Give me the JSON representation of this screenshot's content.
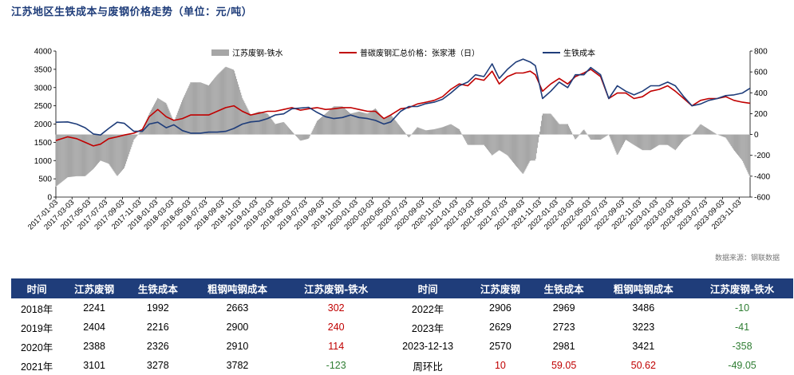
{
  "title": "江苏地区生铁成本与废钢价格走势（单位：元/吨）",
  "source": "数据来源：钢联数据",
  "chart_data": {
    "type": "bar+line",
    "legend": {
      "position": "top",
      "entries": [
        "江苏废钢-铁水",
        "普碳废钢汇总价格：张家港（日）",
        "生铁成本"
      ]
    },
    "colors": {
      "bar": "#a6a6a6",
      "scrap": "#c00000",
      "iron": "#1f3d7a"
    },
    "y_left": {
      "range": [
        0,
        4000
      ],
      "ticks": [
        "0",
        "500",
        "1000",
        "1500",
        "2000",
        "2500",
        "3000",
        "3500",
        "4000"
      ]
    },
    "y_right": {
      "range": [
        -600,
        800
      ],
      "ticks": [
        "-600",
        "-400",
        "-200",
        "0",
        "200",
        "400",
        "600",
        "800"
      ]
    },
    "x_ticks": [
      "2017-01-03",
      "2017-03-03",
      "2017-05-03",
      "2017-07-03",
      "2017-09-03",
      "2017-11-03",
      "2018-01-03",
      "2018-03-03",
      "2018-05-03",
      "2018-07-03",
      "2018-09-03",
      "2018-11-03",
      "2019-01-03",
      "2019-03-03",
      "2019-05-03",
      "2019-07-03",
      "2019-09-03",
      "2019-11-03",
      "2020-01-03",
      "2020-03-03",
      "2020-05-03",
      "2020-07-03",
      "2020-09-03",
      "2020-11-03",
      "2021-01-03",
      "2021-03-03",
      "2021-05-03",
      "2021-07-03",
      "2021-09-03",
      "2021-11-03",
      "2022-01-03",
      "2022-03-03",
      "2022-05-03",
      "2022-07-03",
      "2022-09-03",
      "2022-11-03",
      "2023-01-03",
      "2023-03-03",
      "2023-05-03",
      "2023-07-03",
      "2023-09-03",
      "2023-11-03"
    ],
    "x_range": [
      "2017-01-03",
      "2023-12-13"
    ],
    "series": [
      {
        "name": "生铁成本",
        "axis": "left",
        "type": "line",
        "points": [
          [
            "2017-01-03",
            2050
          ],
          [
            "2017-02-15",
            2060
          ],
          [
            "2017-03-20",
            2000
          ],
          [
            "2017-04-20",
            1900
          ],
          [
            "2017-05-20",
            1730
          ],
          [
            "2017-06-15",
            1700
          ],
          [
            "2017-07-15",
            1880
          ],
          [
            "2017-08-15",
            2050
          ],
          [
            "2017-09-10",
            2020
          ],
          [
            "2017-10-15",
            1800
          ],
          [
            "2017-11-15",
            1800
          ],
          [
            "2017-12-10",
            2000
          ],
          [
            "2018-01-10",
            2050
          ],
          [
            "2018-02-10",
            1900
          ],
          [
            "2018-03-10",
            1980
          ],
          [
            "2018-04-10",
            1820
          ],
          [
            "2018-05-10",
            1750
          ],
          [
            "2018-06-15",
            1750
          ],
          [
            "2018-07-15",
            1780
          ],
          [
            "2018-08-15",
            1780
          ],
          [
            "2018-09-15",
            1800
          ],
          [
            "2018-10-15",
            1880
          ],
          [
            "2018-11-15",
            2000
          ],
          [
            "2018-12-15",
            2060
          ],
          [
            "2019-01-15",
            2080
          ],
          [
            "2019-02-15",
            2150
          ],
          [
            "2019-03-15",
            2250
          ],
          [
            "2019-04-15",
            2280
          ],
          [
            "2019-05-15",
            2420
          ],
          [
            "2019-06-15",
            2440
          ],
          [
            "2019-07-15",
            2460
          ],
          [
            "2019-08-15",
            2320
          ],
          [
            "2019-09-15",
            2200
          ],
          [
            "2019-10-15",
            2150
          ],
          [
            "2019-11-15",
            2180
          ],
          [
            "2019-12-15",
            2250
          ],
          [
            "2020-01-15",
            2180
          ],
          [
            "2020-02-15",
            2150
          ],
          [
            "2020-03-15",
            2100
          ],
          [
            "2020-04-15",
            2000
          ],
          [
            "2020-05-10",
            2060
          ],
          [
            "2020-06-15",
            2350
          ],
          [
            "2020-07-15",
            2480
          ],
          [
            "2020-08-15",
            2480
          ],
          [
            "2020-09-15",
            2560
          ],
          [
            "2020-10-15",
            2600
          ],
          [
            "2020-11-15",
            2680
          ],
          [
            "2020-12-15",
            2850
          ],
          [
            "2021-01-15",
            3050
          ],
          [
            "2021-02-15",
            3150
          ],
          [
            "2021-03-15",
            3350
          ],
          [
            "2021-04-15",
            3300
          ],
          [
            "2021-05-15",
            3650
          ],
          [
            "2021-06-10",
            3250
          ],
          [
            "2021-07-10",
            3500
          ],
          [
            "2021-08-10",
            3700
          ],
          [
            "2021-09-05",
            3780
          ],
          [
            "2021-10-01",
            3700
          ],
          [
            "2021-10-20",
            3600
          ],
          [
            "2021-11-15",
            2700
          ],
          [
            "2021-12-15",
            2900
          ],
          [
            "2022-01-15",
            3150
          ],
          [
            "2022-02-15",
            3000
          ],
          [
            "2022-03-15",
            3350
          ],
          [
            "2022-04-15",
            3350
          ],
          [
            "2022-05-10",
            3550
          ],
          [
            "2022-06-15",
            3350
          ],
          [
            "2022-07-15",
            2700
          ],
          [
            "2022-08-15",
            3050
          ],
          [
            "2022-09-15",
            2900
          ],
          [
            "2022-10-15",
            2800
          ],
          [
            "2022-11-15",
            2900
          ],
          [
            "2022-12-15",
            3050
          ],
          [
            "2023-01-15",
            3050
          ],
          [
            "2023-02-15",
            3150
          ],
          [
            "2023-03-15",
            3050
          ],
          [
            "2023-04-15",
            2750
          ],
          [
            "2023-05-15",
            2500
          ],
          [
            "2023-06-15",
            2550
          ],
          [
            "2023-07-15",
            2650
          ],
          [
            "2023-08-15",
            2700
          ],
          [
            "2023-09-15",
            2780
          ],
          [
            "2023-10-15",
            2800
          ],
          [
            "2023-11-15",
            2850
          ],
          [
            "2023-12-13",
            2981
          ]
        ]
      },
      {
        "name": "普碳废钢汇总价格：张家港（日）",
        "axis": "left",
        "type": "line",
        "points": [
          [
            "2017-01-03",
            1550
          ],
          [
            "2017-02-15",
            1650
          ],
          [
            "2017-03-20",
            1600
          ],
          [
            "2017-04-20",
            1500
          ],
          [
            "2017-05-20",
            1400
          ],
          [
            "2017-06-15",
            1450
          ],
          [
            "2017-07-15",
            1600
          ],
          [
            "2017-08-15",
            1650
          ],
          [
            "2017-09-10",
            1700
          ],
          [
            "2017-10-15",
            1750
          ],
          [
            "2017-11-15",
            1850
          ],
          [
            "2017-12-10",
            2200
          ],
          [
            "2018-01-10",
            2400
          ],
          [
            "2018-02-10",
            2200
          ],
          [
            "2018-03-10",
            2100
          ],
          [
            "2018-04-10",
            2150
          ],
          [
            "2018-05-10",
            2250
          ],
          [
            "2018-06-15",
            2250
          ],
          [
            "2018-07-15",
            2250
          ],
          [
            "2018-08-15",
            2350
          ],
          [
            "2018-09-15",
            2450
          ],
          [
            "2018-10-15",
            2500
          ],
          [
            "2018-11-15",
            2350
          ],
          [
            "2018-12-15",
            2250
          ],
          [
            "2019-01-15",
            2300
          ],
          [
            "2019-02-15",
            2350
          ],
          [
            "2019-03-15",
            2350
          ],
          [
            "2019-04-15",
            2400
          ],
          [
            "2019-05-15",
            2450
          ],
          [
            "2019-06-15",
            2380
          ],
          [
            "2019-07-15",
            2420
          ],
          [
            "2019-08-15",
            2450
          ],
          [
            "2019-09-15",
            2400
          ],
          [
            "2019-10-15",
            2420
          ],
          [
            "2019-11-15",
            2450
          ],
          [
            "2019-12-15",
            2450
          ],
          [
            "2020-01-15",
            2400
          ],
          [
            "2020-02-15",
            2350
          ],
          [
            "2020-03-15",
            2350
          ],
          [
            "2020-04-15",
            2150
          ],
          [
            "2020-05-10",
            2250
          ],
          [
            "2020-06-15",
            2420
          ],
          [
            "2020-07-15",
            2450
          ],
          [
            "2020-08-15",
            2550
          ],
          [
            "2020-09-15",
            2600
          ],
          [
            "2020-10-15",
            2650
          ],
          [
            "2020-11-15",
            2750
          ],
          [
            "2020-12-15",
            2950
          ],
          [
            "2021-01-15",
            3100
          ],
          [
            "2021-02-15",
            3050
          ],
          [
            "2021-03-15",
            3250
          ],
          [
            "2021-04-15",
            3200
          ],
          [
            "2021-05-15",
            3450
          ],
          [
            "2021-06-10",
            3100
          ],
          [
            "2021-07-10",
            3300
          ],
          [
            "2021-08-10",
            3400
          ],
          [
            "2021-09-05",
            3400
          ],
          [
            "2021-10-01",
            3450
          ],
          [
            "2021-10-20",
            3350
          ],
          [
            "2021-11-15",
            2900
          ],
          [
            "2021-12-15",
            3100
          ],
          [
            "2022-01-15",
            3250
          ],
          [
            "2022-02-15",
            3100
          ],
          [
            "2022-03-15",
            3300
          ],
          [
            "2022-04-15",
            3400
          ],
          [
            "2022-05-10",
            3500
          ],
          [
            "2022-06-15",
            3300
          ],
          [
            "2022-07-15",
            2700
          ],
          [
            "2022-08-15",
            2850
          ],
          [
            "2022-09-15",
            2850
          ],
          [
            "2022-10-15",
            2700
          ],
          [
            "2022-11-15",
            2750
          ],
          [
            "2022-12-15",
            2900
          ],
          [
            "2023-01-15",
            2950
          ],
          [
            "2023-02-15",
            3050
          ],
          [
            "2023-03-15",
            2900
          ],
          [
            "2023-04-15",
            2700
          ],
          [
            "2023-05-15",
            2500
          ],
          [
            "2023-06-15",
            2650
          ],
          [
            "2023-07-15",
            2700
          ],
          [
            "2023-08-15",
            2700
          ],
          [
            "2023-09-15",
            2750
          ],
          [
            "2023-10-15",
            2650
          ],
          [
            "2023-11-15",
            2600
          ],
          [
            "2023-12-13",
            2570
          ]
        ]
      }
    ]
  },
  "table": {
    "headers": [
      "时间",
      "江苏废钢",
      "生铁成本",
      "粗钢吨钢成本",
      "江苏废钢-铁水",
      "时间",
      "江苏废钢",
      "生铁成本",
      "粗钢吨钢成本",
      "江苏废钢-铁水"
    ],
    "rows": [
      [
        "2018年",
        "2241",
        "1992",
        "2663",
        "302",
        "2022年",
        "2906",
        "2969",
        "3486",
        "-10"
      ],
      [
        "2019年",
        "2404",
        "2216",
        "2900",
        "240",
        "2023年",
        "2629",
        "2723",
        "3223",
        "-41"
      ],
      [
        "2020年",
        "2388",
        "2326",
        "2910",
        "114",
        "2023-12-13",
        "2570",
        "2981",
        "3421",
        "-358"
      ],
      [
        "2021年",
        "3101",
        "3278",
        "3782",
        "-123",
        "周环比",
        "10",
        "59.05",
        "50.62",
        "-49.05"
      ]
    ]
  }
}
